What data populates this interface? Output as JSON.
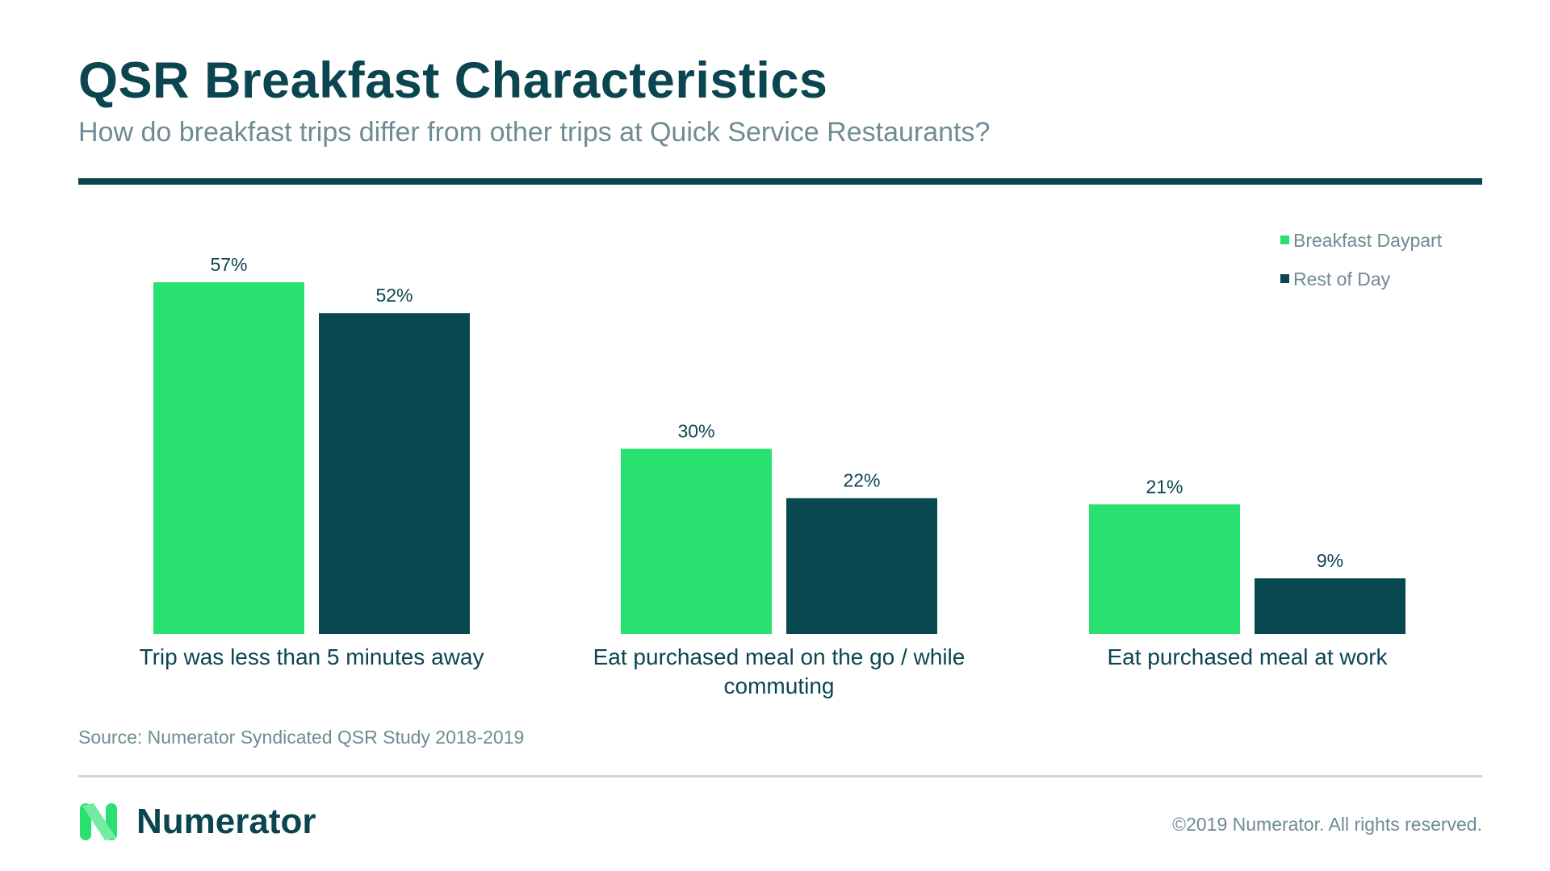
{
  "header": {
    "title": "QSR Breakfast Characteristics",
    "subtitle": "How do breakfast trips differ from other trips at Quick Service Restaurants?"
  },
  "colors": {
    "breakfast": "#28e170",
    "rest_of_day": "#074851",
    "text_dark": "#0b4550",
    "text_muted": "#6f8b93"
  },
  "chart_data": {
    "type": "bar",
    "categories": [
      [
        "Trip was less than 5 minutes away"
      ],
      [
        "Eat purchased meal on the go / while",
        "commuting"
      ],
      [
        "Eat purchased meal at work"
      ]
    ],
    "series": [
      {
        "name": "Breakfast Daypart",
        "values": [
          57,
          30,
          21
        ],
        "labels": [
          "57%",
          "30%",
          "21%"
        ],
        "color": "#28e170"
      },
      {
        "name": "Rest of Day",
        "values": [
          52,
          22,
          9
        ],
        "labels": [
          "52%",
          "22%",
          "9%"
        ],
        "color": "#074851"
      }
    ],
    "unit": "%",
    "ylim": [
      0,
      57
    ],
    "legend_position": "top-right",
    "grid": false
  },
  "footer": {
    "source": "Source: Numerator Syndicated QSR Study 2018-2019",
    "logo_text": "Numerator",
    "copyright": "©2019 Numerator. All rights reserved."
  }
}
